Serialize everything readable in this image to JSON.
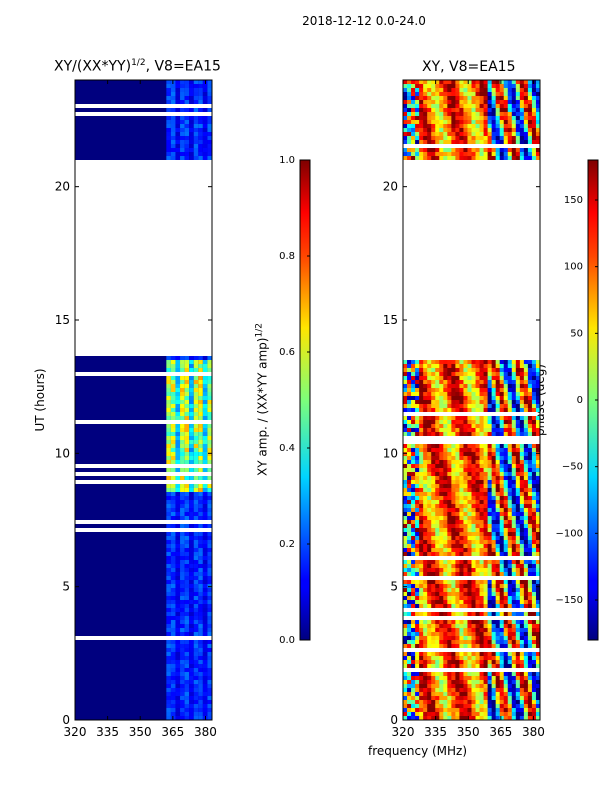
{
  "suptitle": "2018-12-12 0.0-24.0",
  "chart_data": [
    {
      "type": "heatmap",
      "title_main": "XY/(XX*YY)",
      "title_sup": "1/2",
      "title_tail": ", V8=EA15",
      "xlabel": "frequency (MHz)",
      "ylabel": "UT (hours)",
      "xlim": [
        320,
        383
      ],
      "ylim": [
        0,
        24
      ],
      "xticks": [
        "320",
        "335",
        "350",
        "365",
        "380"
      ],
      "yticks": [
        "0",
        "5",
        "10",
        "15",
        "20"
      ],
      "colorbar": {
        "label_main": "XY amp. / (XX*YY amp)",
        "label_sup": "1/2",
        "range": [
          0.0,
          1.0
        ],
        "ticks": [
          "0.0",
          "0.2",
          "0.4",
          "0.6",
          "0.8",
          "1.0"
        ]
      },
      "data_gap_hours": [
        13.6,
        21.0
      ]
    },
    {
      "type": "heatmap",
      "title": "XY, V8=EA15",
      "xlabel": "frequency (MHz)",
      "ylabel": "",
      "xlim": [
        320,
        383
      ],
      "ylim": [
        0,
        24
      ],
      "xticks": [
        "320",
        "335",
        "350",
        "365",
        "380"
      ],
      "yticks": [
        "0",
        "5",
        "10",
        "15",
        "20"
      ],
      "colorbar": {
        "label": "phase (deg)",
        "range": [
          -180,
          180
        ],
        "ticks": [
          "-150",
          "-100",
          "-50",
          "0",
          "50",
          "100",
          "150"
        ]
      },
      "data_gap_hours": [
        13.6,
        21.0
      ]
    }
  ]
}
